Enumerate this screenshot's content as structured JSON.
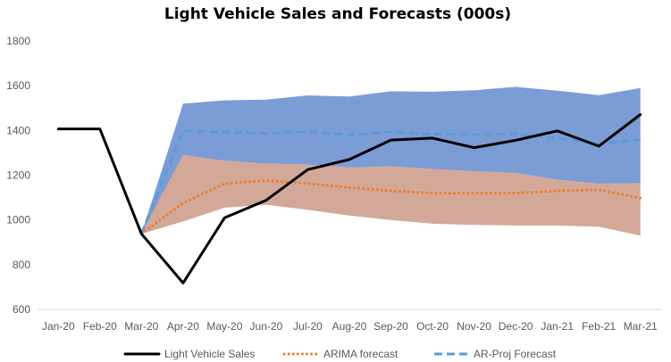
{
  "chart_data": {
    "type": "line",
    "title": "Light Vehicle Sales and Forecasts (000s)",
    "xlabel": "",
    "ylabel": "",
    "ylim": [
      600,
      1800
    ],
    "yticks": [
      600,
      800,
      1000,
      1200,
      1400,
      1600,
      1800
    ],
    "categories": [
      "Jan-20",
      "Feb-20",
      "Mar-20",
      "Apr-20",
      "May-20",
      "Jun-20",
      "Jul-20",
      "Aug-20",
      "Sep-20",
      "Oct-20",
      "Nov-20",
      "Dec-20",
      "Jan-21",
      "Feb-21",
      "Mar-21"
    ],
    "series": [
      {
        "name": "Light Vehicle Sales",
        "color": "#000000",
        "style": "solid",
        "values": [
          1407,
          1407,
          938,
          718,
          1010,
          1088,
          1225,
          1270,
          1357,
          1366,
          1323,
          1356,
          1398,
          1330,
          1471
        ]
      },
      {
        "name": "ARIMA forecast",
        "color": "#ED7D31",
        "style": "dotted",
        "values": [
          null,
          null,
          938,
          1075,
          1163,
          1176,
          1163,
          1145,
          1130,
          1120,
          1120,
          1120,
          1130,
          1135,
          1098
        ]
      },
      {
        "name": "AR-Proj Forecast",
        "color": "#5B9BD5",
        "style": "dashed",
        "values": [
          null,
          null,
          938,
          1398,
          1392,
          1387,
          1395,
          1380,
          1393,
          1383,
          1382,
          1385,
          1365,
          1340,
          1360
        ]
      }
    ],
    "bands": [
      {
        "name": "AR-Proj interval",
        "color": "#4472C4",
        "lower": [
          null,
          null,
          938,
          1290,
          1265,
          1252,
          1248,
          1235,
          1240,
          1228,
          1218,
          1210,
          1180,
          1162,
          1165
        ],
        "upper": [
          null,
          null,
          938,
          1520,
          1535,
          1538,
          1557,
          1552,
          1575,
          1573,
          1580,
          1595,
          1578,
          1558,
          1590
        ]
      },
      {
        "name": "ARIMA interval",
        "color": "#C0836C",
        "lower": [
          null,
          null,
          938,
          993,
          1055,
          1068,
          1045,
          1020,
          1000,
          983,
          978,
          975,
          975,
          970,
          930
        ],
        "upper": [
          null,
          null,
          938,
          1290,
          1265,
          1252,
          1248,
          1235,
          1240,
          1228,
          1218,
          1210,
          1180,
          1162,
          1165
        ]
      }
    ],
    "legend": {
      "position": "bottom"
    }
  }
}
